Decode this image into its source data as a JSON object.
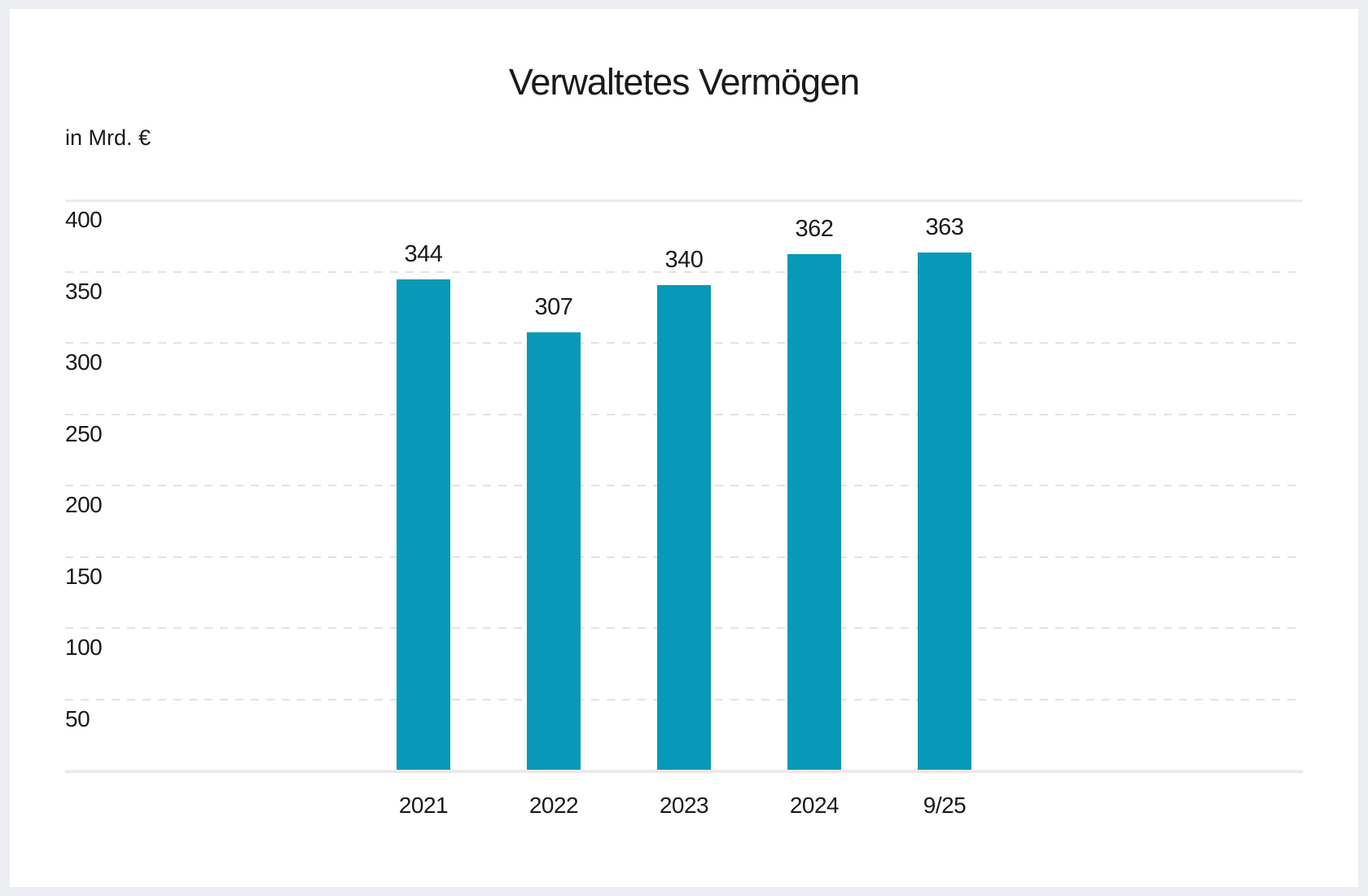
{
  "chart_data": {
    "type": "bar",
    "title": "Verwaltetes Vermögen",
    "unit_label": "in Mrd. €",
    "categories": [
      "2021",
      "2022",
      "2023",
      "2024",
      "9/25"
    ],
    "values": [
      344,
      307,
      340,
      362,
      363
    ],
    "value_labels": [
      "344",
      "307",
      "340",
      "362",
      "363"
    ],
    "ylim": [
      0,
      400
    ],
    "yticks": [
      400,
      350,
      300,
      250,
      200,
      150,
      100,
      50
    ],
    "grid": "horizontal, dashed; top line solid; thick solid baseline at 0",
    "legend_position": "none",
    "xlabel": "",
    "ylabel": "in Mrd. €",
    "colors": {
      "bar": "#0999b8",
      "text": "#1a1a1a",
      "gridline_dashed": "#e3e3e3",
      "gridline_solid": "#ececec",
      "baseline": "#ebebeb",
      "frame_background": "#ecedf0",
      "canvas_background": "#ffffff"
    }
  }
}
